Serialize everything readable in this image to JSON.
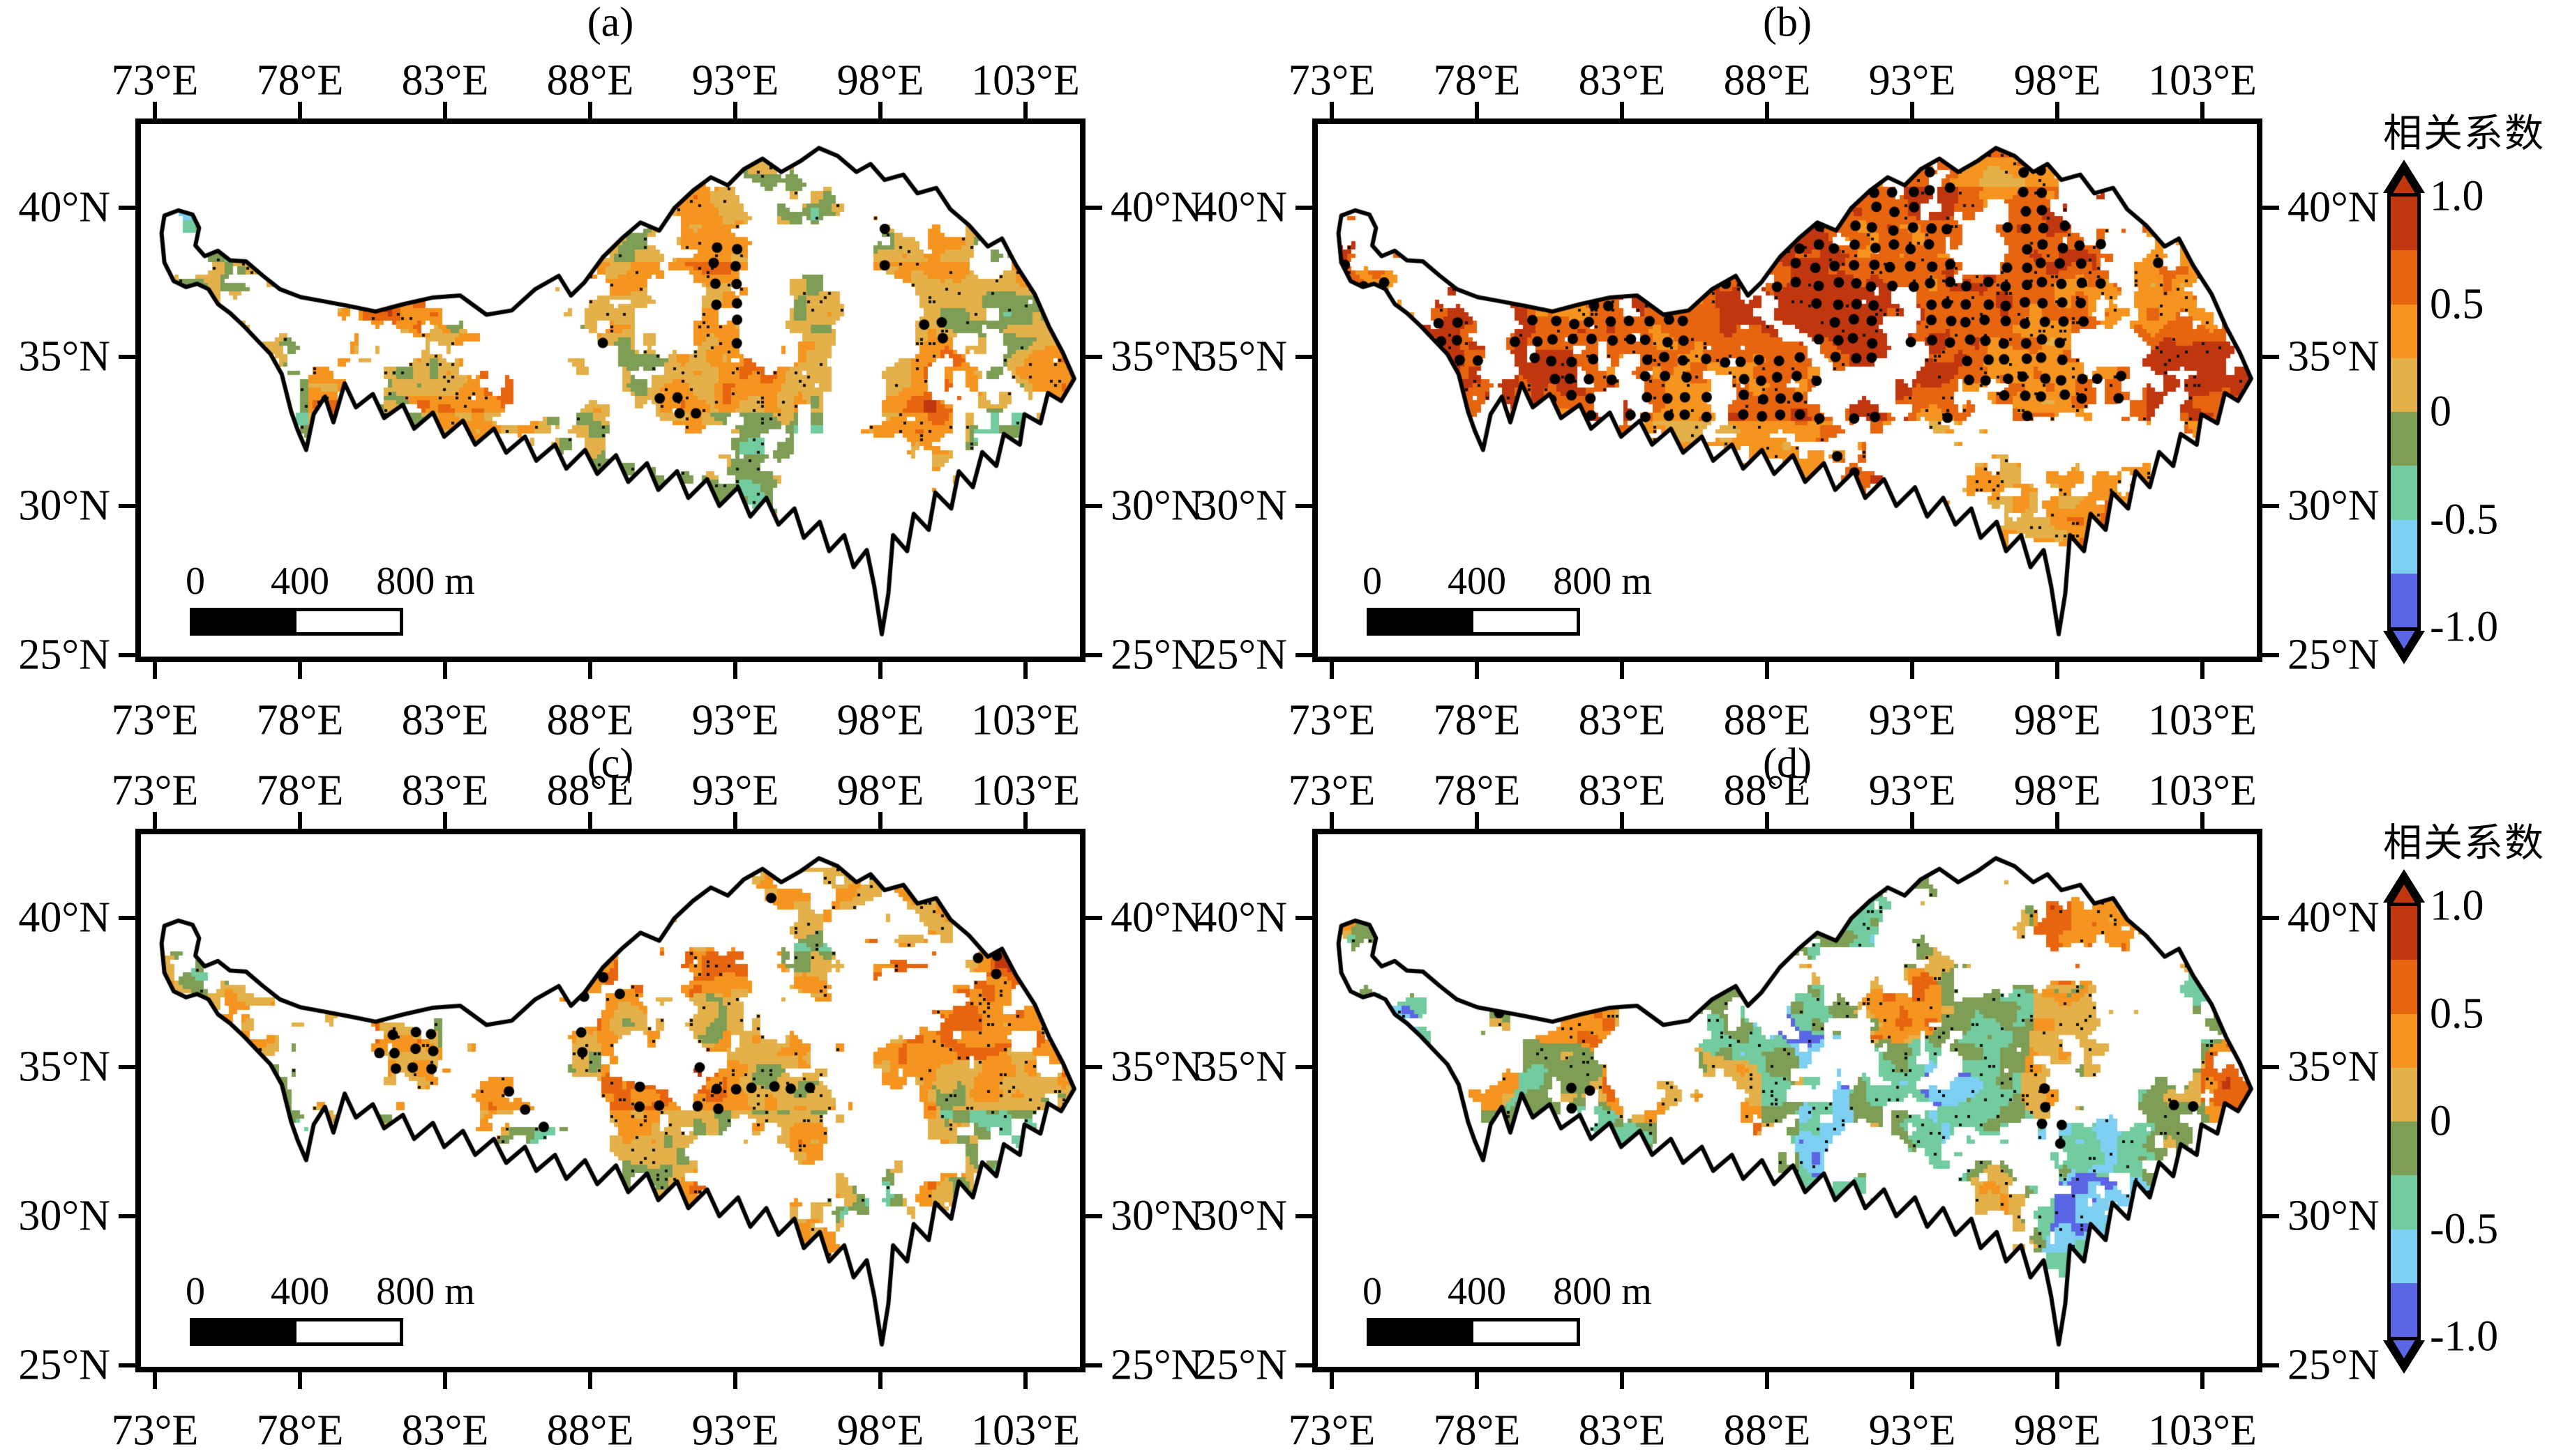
{
  "figure": {
    "description": "Four-panel spatial correlation maps over the Tibetan Plateau with categorical correlation-coefficient colorbars and significance stippling",
    "panels": [
      {
        "label": "(a)",
        "gen": {
          "seed": 11,
          "base": 0.02,
          "amp1": 0.4,
          "amp2": 0.22,
          "band": [
            0.26,
            0.54,
            0.26
          ],
          "west": [
            0.18,
            -0.48
          ],
          "ppatch": {
            "th": 2.0,
            "add": 0.0,
            "fyMax": 1.0
          },
          "npatch": {
            "th": 0.74,
            "add": -0.35,
            "fxMax": 0.5,
            "fyMin": 0.0
          },
          "cov": 0.5,
          "south": 0.1,
          "north": 0.06,
          "bandCov": 0.0,
          "stip": [
            [
              0.18,
              0.3,
              0.68,
              0.56,
              0.62
            ],
            [
              0.07,
              0.26,
              0.17,
              0.42,
              0.55
            ],
            [
              0.08,
              0.4,
              0.18,
              0.55,
              0.56
            ],
            [
              0.7,
              0.18,
              0.83,
              0.34,
              0.56
            ]
          ],
          "stipDef": 0.88
        }
      },
      {
        "label": "(b)",
        "gen": {
          "seed": 22,
          "base": 0.4,
          "amp1": 0.33,
          "amp2": 0.2,
          "band": [
            0.12,
            0.56,
            0.3
          ],
          "west": [
            0.18,
            -0.05
          ],
          "ppatch": {
            "th": 2.0,
            "add": 0.0,
            "fyMax": 1.0
          },
          "npatch": {
            "th": 2.0,
            "add": 0.0,
            "fxMax": 1.0,
            "fyMin": 0.0
          },
          "cov": 0.47,
          "south": 0.12,
          "north": 0.05,
          "bandCov": -0.08,
          "stip": [
            [
              0.03,
              0.1,
              0.86,
              0.58,
              0.3
            ],
            [
              0.6,
              0.06,
              0.88,
              0.22,
              0.38
            ]
          ],
          "stipDef": 0.82
        }
      },
      {
        "label": "(c)",
        "gen": {
          "seed": 33,
          "base": 0.08,
          "amp1": 0.4,
          "amp2": 0.22,
          "band": [
            0.22,
            0.52,
            0.28
          ],
          "west": [
            0.18,
            -0.26
          ],
          "ppatch": {
            "th": 2.0,
            "add": 0.0,
            "fyMax": 1.0
          },
          "npatch": {
            "th": 0.76,
            "add": -0.3,
            "fxMax": 1.0,
            "fyMin": 0.0
          },
          "cov": 0.48,
          "south": 0.1,
          "north": 0.06,
          "bandCov": -0.02,
          "stip": [
            [
              0.22,
              0.26,
              0.62,
              0.52,
              0.6
            ],
            [
              0.12,
              0.55,
              0.25,
              0.72,
              0.55
            ],
            [
              0.62,
              0.3,
              0.76,
              0.5,
              0.62
            ]
          ],
          "stipDef": 0.88
        }
      },
      {
        "label": "(d)",
        "gen": {
          "seed": 44,
          "base": -0.12,
          "amp1": 0.36,
          "amp2": 0.2,
          "band": [
            0.25,
            0.58,
            -0.06
          ],
          "west": [
            0.18,
            -0.1
          ],
          "ppatch": {
            "th": 0.6,
            "add": 0.5,
            "fyMax": 0.58
          },
          "npatch": {
            "th": 0.7,
            "add": -0.4,
            "fxMax": 1.0,
            "fyMin": 0.28
          },
          "cov": 0.47,
          "south": 0.08,
          "north": 0.05,
          "bandCov": 0.0,
          "stip": [
            [
              0.52,
              0.3,
              0.8,
              0.62,
              0.6
            ],
            [
              0.36,
              0.1,
              0.52,
              0.28,
              0.63
            ],
            [
              0.55,
              0.62,
              0.72,
              0.82,
              0.62
            ]
          ],
          "stipDef": 0.9
        }
      }
    ],
    "axis": {
      "lon_labels": [
        "73°E",
        "78°E",
        "83°E",
        "88°E",
        "93°E",
        "98°E",
        "103°E"
      ],
      "lat_labels": [
        "40°N",
        "35°N",
        "30°N",
        "25°N"
      ]
    },
    "scale_bar": {
      "labels": [
        "0",
        "400",
        "800 m"
      ]
    },
    "colorbar": {
      "title": "相关系数",
      "tick_labels": [
        "1.0",
        "0.5",
        "0",
        "-0.5",
        "-1.0"
      ],
      "segment_bounds": [
        1.0,
        0.75,
        0.5,
        0.25,
        0,
        -0.25,
        -0.5,
        -0.75,
        -1.0
      ],
      "segment_colors": [
        "#C0360F",
        "#E8650F",
        "#F5941E",
        "#E3B04A",
        "#7E9D55",
        "#72CCA0",
        "#7ED0F2",
        "#5A66E6"
      ],
      "outline_color": "#000000"
    },
    "map": {
      "boundary_color": "#000000",
      "stipple_color": "#000000",
      "outline_fraction_coords": [
        [
          0.022,
          0.205
        ],
        [
          0.025,
          0.172
        ],
        [
          0.04,
          0.162
        ],
        [
          0.055,
          0.17
        ],
        [
          0.062,
          0.195
        ],
        [
          0.058,
          0.228
        ],
        [
          0.068,
          0.248
        ],
        [
          0.082,
          0.238
        ],
        [
          0.095,
          0.256
        ],
        [
          0.112,
          0.258
        ],
        [
          0.13,
          0.285
        ],
        [
          0.148,
          0.31
        ],
        [
          0.17,
          0.325
        ],
        [
          0.195,
          0.333
        ],
        [
          0.222,
          0.342
        ],
        [
          0.25,
          0.352
        ],
        [
          0.28,
          0.338
        ],
        [
          0.31,
          0.326
        ],
        [
          0.34,
          0.322
        ],
        [
          0.368,
          0.358
        ],
        [
          0.395,
          0.35
        ],
        [
          0.42,
          0.31
        ],
        [
          0.445,
          0.285
        ],
        [
          0.458,
          0.322
        ],
        [
          0.472,
          0.298
        ],
        [
          0.492,
          0.25
        ],
        [
          0.512,
          0.215
        ],
        [
          0.532,
          0.185
        ],
        [
          0.552,
          0.2
        ],
        [
          0.568,
          0.158
        ],
        [
          0.588,
          0.125
        ],
        [
          0.607,
          0.1
        ],
        [
          0.625,
          0.115
        ],
        [
          0.642,
          0.085
        ],
        [
          0.662,
          0.065
        ],
        [
          0.682,
          0.09
        ],
        [
          0.702,
          0.07
        ],
        [
          0.722,
          0.045
        ],
        [
          0.742,
          0.06
        ],
        [
          0.762,
          0.09
        ],
        [
          0.777,
          0.075
        ],
        [
          0.792,
          0.105
        ],
        [
          0.812,
          0.095
        ],
        [
          0.827,
          0.13
        ],
        [
          0.847,
          0.12
        ],
        [
          0.862,
          0.16
        ],
        [
          0.882,
          0.19
        ],
        [
          0.902,
          0.23
        ],
        [
          0.917,
          0.215
        ],
        [
          0.932,
          0.265
        ],
        [
          0.952,
          0.32
        ],
        [
          0.967,
          0.38
        ],
        [
          0.982,
          0.43
        ],
        [
          0.994,
          0.478
        ],
        [
          0.98,
          0.52
        ],
        [
          0.966,
          0.505
        ],
        [
          0.958,
          0.562
        ],
        [
          0.941,
          0.545
        ],
        [
          0.936,
          0.602
        ],
        [
          0.919,
          0.582
        ],
        [
          0.911,
          0.642
        ],
        [
          0.896,
          0.616
        ],
        [
          0.886,
          0.682
        ],
        [
          0.871,
          0.652
        ],
        [
          0.863,
          0.722
        ],
        [
          0.846,
          0.692
        ],
        [
          0.839,
          0.762
        ],
        [
          0.823,
          0.732
        ],
        [
          0.816,
          0.802
        ],
        [
          0.801,
          0.772
        ],
        [
          0.796,
          0.882
        ],
        [
          0.789,
          0.958
        ],
        [
          0.781,
          0.868
        ],
        [
          0.773,
          0.8
        ],
        [
          0.759,
          0.832
        ],
        [
          0.749,
          0.772
        ],
        [
          0.733,
          0.802
        ],
        [
          0.723,
          0.747
        ],
        [
          0.706,
          0.777
        ],
        [
          0.696,
          0.722
        ],
        [
          0.679,
          0.752
        ],
        [
          0.666,
          0.702
        ],
        [
          0.649,
          0.737
        ],
        [
          0.636,
          0.682
        ],
        [
          0.616,
          0.717
        ],
        [
          0.603,
          0.667
        ],
        [
          0.583,
          0.702
        ],
        [
          0.571,
          0.652
        ],
        [
          0.551,
          0.687
        ],
        [
          0.539,
          0.637
        ],
        [
          0.519,
          0.672
        ],
        [
          0.506,
          0.622
        ],
        [
          0.486,
          0.657
        ],
        [
          0.473,
          0.612
        ],
        [
          0.453,
          0.647
        ],
        [
          0.441,
          0.602
        ],
        [
          0.421,
          0.632
        ],
        [
          0.409,
          0.587
        ],
        [
          0.389,
          0.617
        ],
        [
          0.376,
          0.572
        ],
        [
          0.356,
          0.602
        ],
        [
          0.343,
          0.557
        ],
        [
          0.323,
          0.587
        ],
        [
          0.311,
          0.542
        ],
        [
          0.291,
          0.572
        ],
        [
          0.279,
          0.527
        ],
        [
          0.259,
          0.552
        ],
        [
          0.247,
          0.507
        ],
        [
          0.229,
          0.532
        ],
        [
          0.217,
          0.487
        ],
        [
          0.205,
          0.56
        ],
        [
          0.196,
          0.512
        ],
        [
          0.184,
          0.545
        ],
        [
          0.176,
          0.612
        ],
        [
          0.167,
          0.575
        ],
        [
          0.16,
          0.54
        ],
        [
          0.15,
          0.47
        ],
        [
          0.138,
          0.432
        ],
        [
          0.125,
          0.408
        ],
        [
          0.11,
          0.38
        ],
        [
          0.095,
          0.355
        ],
        [
          0.082,
          0.338
        ],
        [
          0.072,
          0.31
        ],
        [
          0.06,
          0.3
        ],
        [
          0.048,
          0.306
        ],
        [
          0.035,
          0.295
        ],
        [
          0.025,
          0.26
        ]
      ]
    }
  }
}
